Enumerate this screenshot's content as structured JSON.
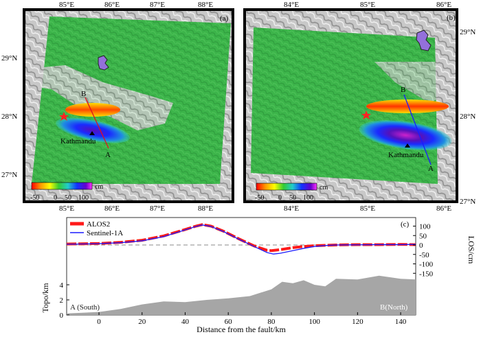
{
  "panel_a": {
    "label": "(a)",
    "top_ticks": [
      "85°E",
      "86°E",
      "87°E",
      "88°E"
    ],
    "bottom_ticks": [
      "85°E",
      "86°E",
      "87°E",
      "88°E"
    ],
    "left_ticks": [
      "29°N",
      "28°N",
      "27°N"
    ],
    "point_b": "B",
    "point_a": "A",
    "city": "Kathmandu",
    "colorbar_ticks": [
      "-50",
      "0",
      "50",
      "100"
    ],
    "colorbar_unit": "cm"
  },
  "panel_b": {
    "label": "(b)",
    "top_ticks": [
      "84°E",
      "85°E",
      "86°E"
    ],
    "bottom_ticks": [
      "84°E",
      "85°E",
      "86°E"
    ],
    "right_ticks": [
      "29°N",
      "28°N",
      "27°N"
    ],
    "point_b": "B",
    "point_a": "A",
    "city": "Kathmandu",
    "colorbar_ticks": [
      "-50",
      "0",
      "50",
      "100"
    ],
    "colorbar_unit": "cm"
  },
  "panel_c": {
    "label": "(c)",
    "legend": [
      "ALOS2",
      "Sentinel-1A"
    ],
    "xlabel": "Distance from the fault/km",
    "ylabel_left": "Topo/km",
    "ylabel_right": "LOS/cm",
    "x_ticks": [
      "0",
      "20",
      "40",
      "60",
      "80",
      "100",
      "120",
      "140"
    ],
    "topo_ticks": [
      "0",
      "2",
      "4"
    ],
    "los_ticks": [
      "100",
      "50",
      "0",
      "-50",
      "-100",
      "-150"
    ],
    "label_south": "A (South)",
    "label_north": "B(North)"
  },
  "colors": {
    "alos2": "#ff1a1a",
    "sentinel": "#1a1aff",
    "topo_fill": "#a6a6a6",
    "background_green": "#3cb44a"
  },
  "chart_data": {
    "type": "line",
    "xlabel": "Distance from the fault/km",
    "ylabel": "LOS/cm",
    "xlim": [
      -15,
      147
    ],
    "ylim": [
      -180,
      125
    ],
    "series": [
      {
        "name": "ALOS2",
        "x": [
          -15,
          0,
          10,
          20,
          30,
          40,
          45,
          48,
          52,
          58,
          65,
          72,
          78,
          80,
          84,
          90,
          95,
          100,
          105,
          110,
          120,
          130,
          140,
          147
        ],
        "y": [
          5,
          8,
          14,
          25,
          48,
          82,
          100,
          108,
          100,
          72,
          32,
          -5,
          -28,
          -30,
          -25,
          -14,
          -8,
          -4,
          -2,
          0,
          2,
          2,
          3,
          2
        ]
      },
      {
        "name": "Sentinel-1A",
        "x": [
          -15,
          0,
          10,
          20,
          30,
          40,
          45,
          48,
          52,
          58,
          65,
          72,
          78,
          81,
          84,
          90,
          95,
          100,
          105,
          110,
          120,
          130,
          140,
          147
        ],
        "y": [
          4,
          7,
          12,
          22,
          44,
          80,
          98,
          106,
          98,
          70,
          30,
          -8,
          -40,
          -48,
          -44,
          -30,
          -18,
          -8,
          -3,
          0,
          1,
          2,
          2,
          3
        ]
      },
      {
        "name": "Topography",
        "x": [
          -15,
          0,
          10,
          20,
          30,
          40,
          50,
          60,
          70,
          80,
          85,
          90,
          95,
          100,
          105,
          110,
          120,
          130,
          140,
          147
        ],
        "y": [
          0.2,
          0.4,
          0.8,
          1.4,
          1.8,
          1.7,
          2.0,
          2.2,
          2.5,
          3.4,
          4.4,
          4.2,
          4.6,
          4.0,
          3.8,
          4.8,
          4.7,
          5.2,
          4.8,
          4.7
        ]
      }
    ]
  }
}
